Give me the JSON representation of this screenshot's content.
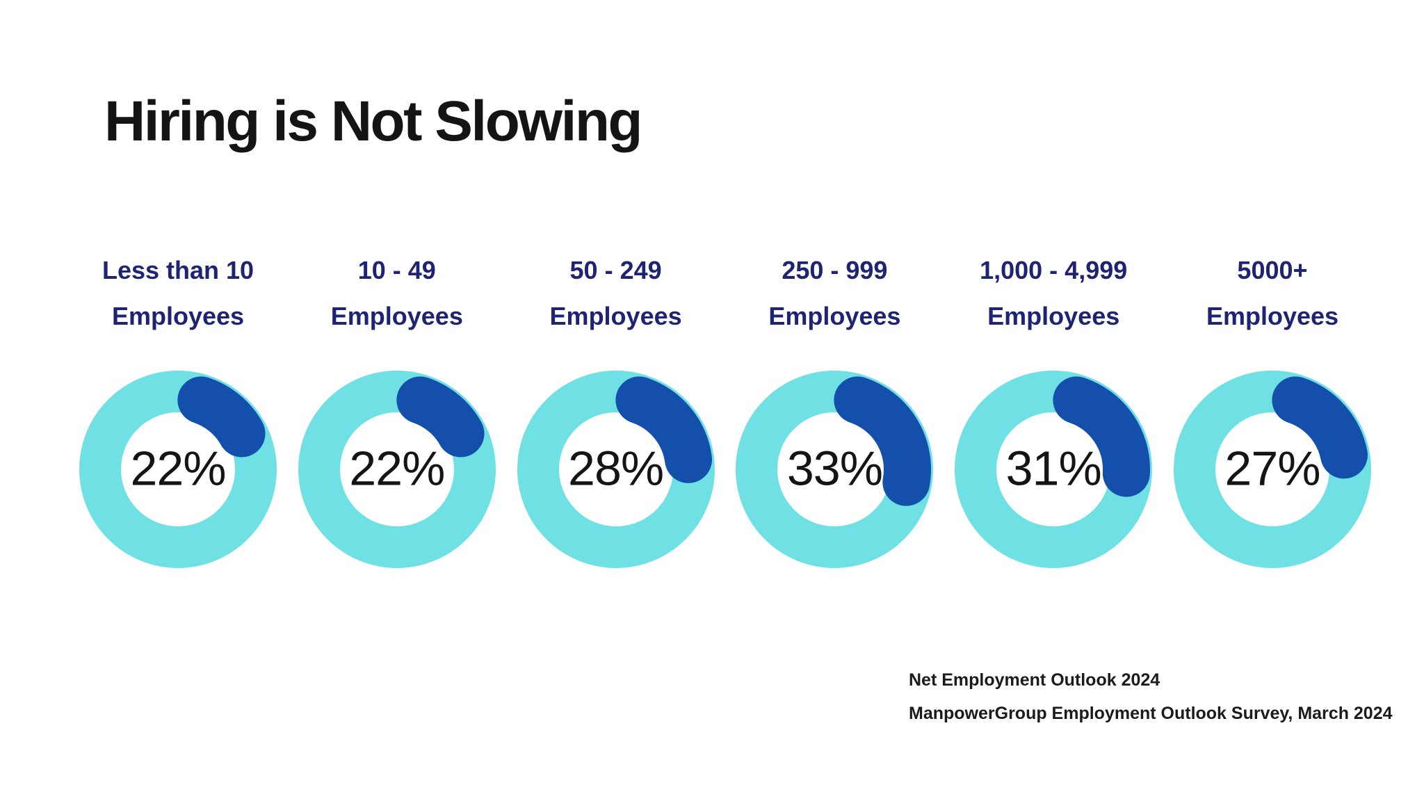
{
  "page": {
    "background": "#ffffff"
  },
  "title": "Hiring is Not Slowing",
  "colors": {
    "ring": "#6FE0E4",
    "arc": "#1450AB",
    "label_navy": "#1E2374",
    "heading_text": "#141414",
    "percent_text": "#141414",
    "source_text": "#1B1B1B"
  },
  "donuts": [
    {
      "label_line1": "Less than 10",
      "label_line2": "Employees",
      "value": 22,
      "value_label": "22%"
    },
    {
      "label_line1": "10 - 49",
      "label_line2": "Employees",
      "value": 22,
      "value_label": "22%"
    },
    {
      "label_line1": "50 - 249",
      "label_line2": "Employees",
      "value": 28,
      "value_label": "28%"
    },
    {
      "label_line1": "250 - 999",
      "label_line2": "Employees",
      "value": 33,
      "value_label": "33%"
    },
    {
      "label_line1": "1,000 - 4,999",
      "label_line2": "Employees",
      "value": 31,
      "value_label": "31%"
    },
    {
      "label_line1": "5000+",
      "label_line2": "Employees",
      "value": 27,
      "value_label": "27%"
    }
  ],
  "source": {
    "line1": "Net Employment Outlook 2024",
    "line2": "ManpowerGroup Employment Outlook Survey, March 2024"
  },
  "chart_data": {
    "type": "donut",
    "title": "Hiring is Not Slowing",
    "unit": "percent",
    "categories": [
      "Less than 10 Employees",
      "10 - 49 Employees",
      "50 - 249 Employees",
      "250 - 999 Employees",
      "1,000 - 4,999 Employees",
      "5000+ Employees"
    ],
    "values": [
      22,
      22,
      28,
      33,
      31,
      27
    ],
    "value_labels": [
      "22%",
      "22%",
      "28%",
      "33%",
      "31%",
      "27%"
    ],
    "ring_color": "#6FE0E4",
    "arc_color": "#1450AB",
    "arc_start": "12 o'clock",
    "arc_direction": "clockwise",
    "legend_position": "none",
    "annotations": [
      "Net Employment Outlook 2024",
      "ManpowerGroup Employment Outlook Survey, March 2024"
    ]
  }
}
